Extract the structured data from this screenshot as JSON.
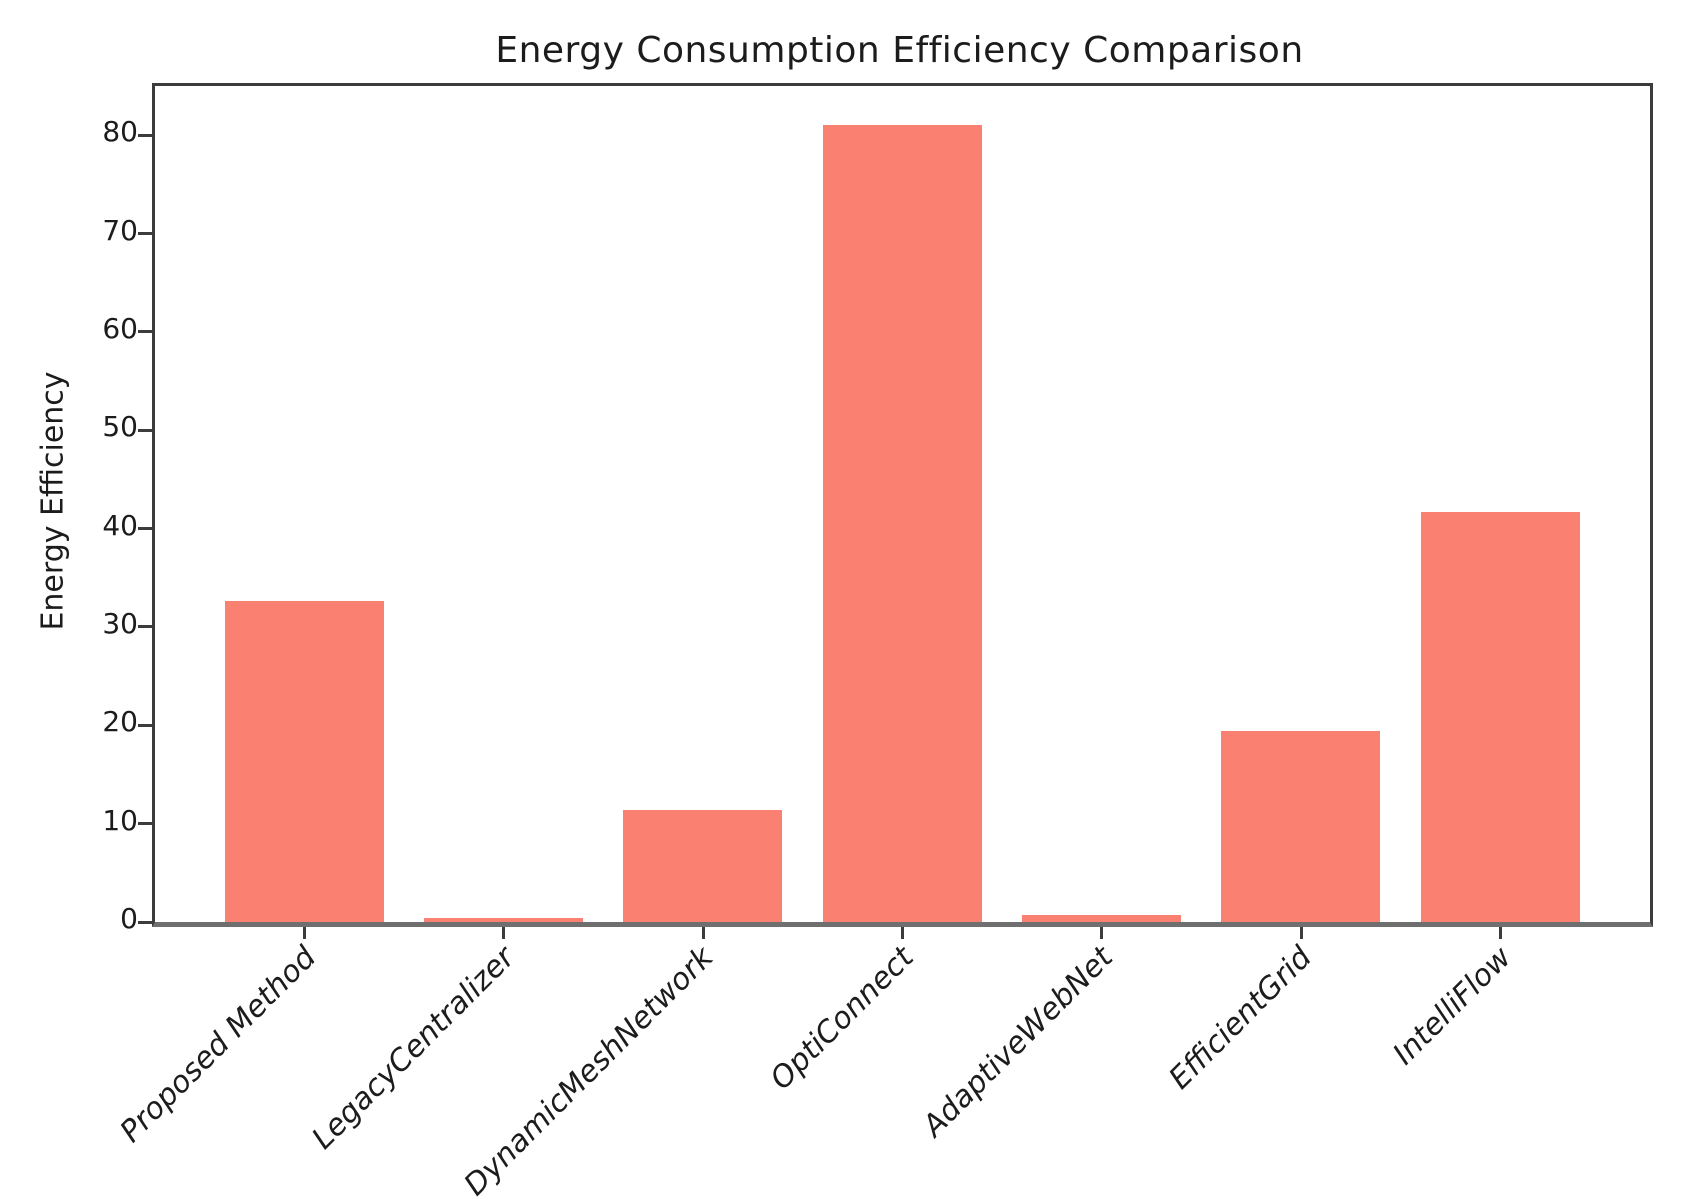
{
  "chart_data": {
    "type": "bar",
    "title": "Energy Consumption Efficiency Comparison",
    "xlabel": "",
    "ylabel": "Energy Efficiency",
    "categories": [
      "Proposed Method",
      "LegacyCentralizer",
      "DynamicMeshNetwork",
      "OptiConnect",
      "AdaptiveWebNet",
      "EfficientGrid",
      "IntelliFlow"
    ],
    "values": [
      32.6,
      0.4,
      11.4,
      81.0,
      0.7,
      19.4,
      41.7
    ],
    "yticks": [
      0,
      10,
      20,
      30,
      40,
      50,
      60,
      70,
      80
    ],
    "ylim": [
      0,
      85
    ],
    "bar_color": "#fa8072",
    "bar_width_fraction": 0.8,
    "grid": false,
    "legend_position": "none"
  },
  "style": {
    "spine_color": "#3c3c3c",
    "baseline_color": "#6f6f6f",
    "text_color": "#1c1c1c",
    "background_color": "#ffffff"
  }
}
